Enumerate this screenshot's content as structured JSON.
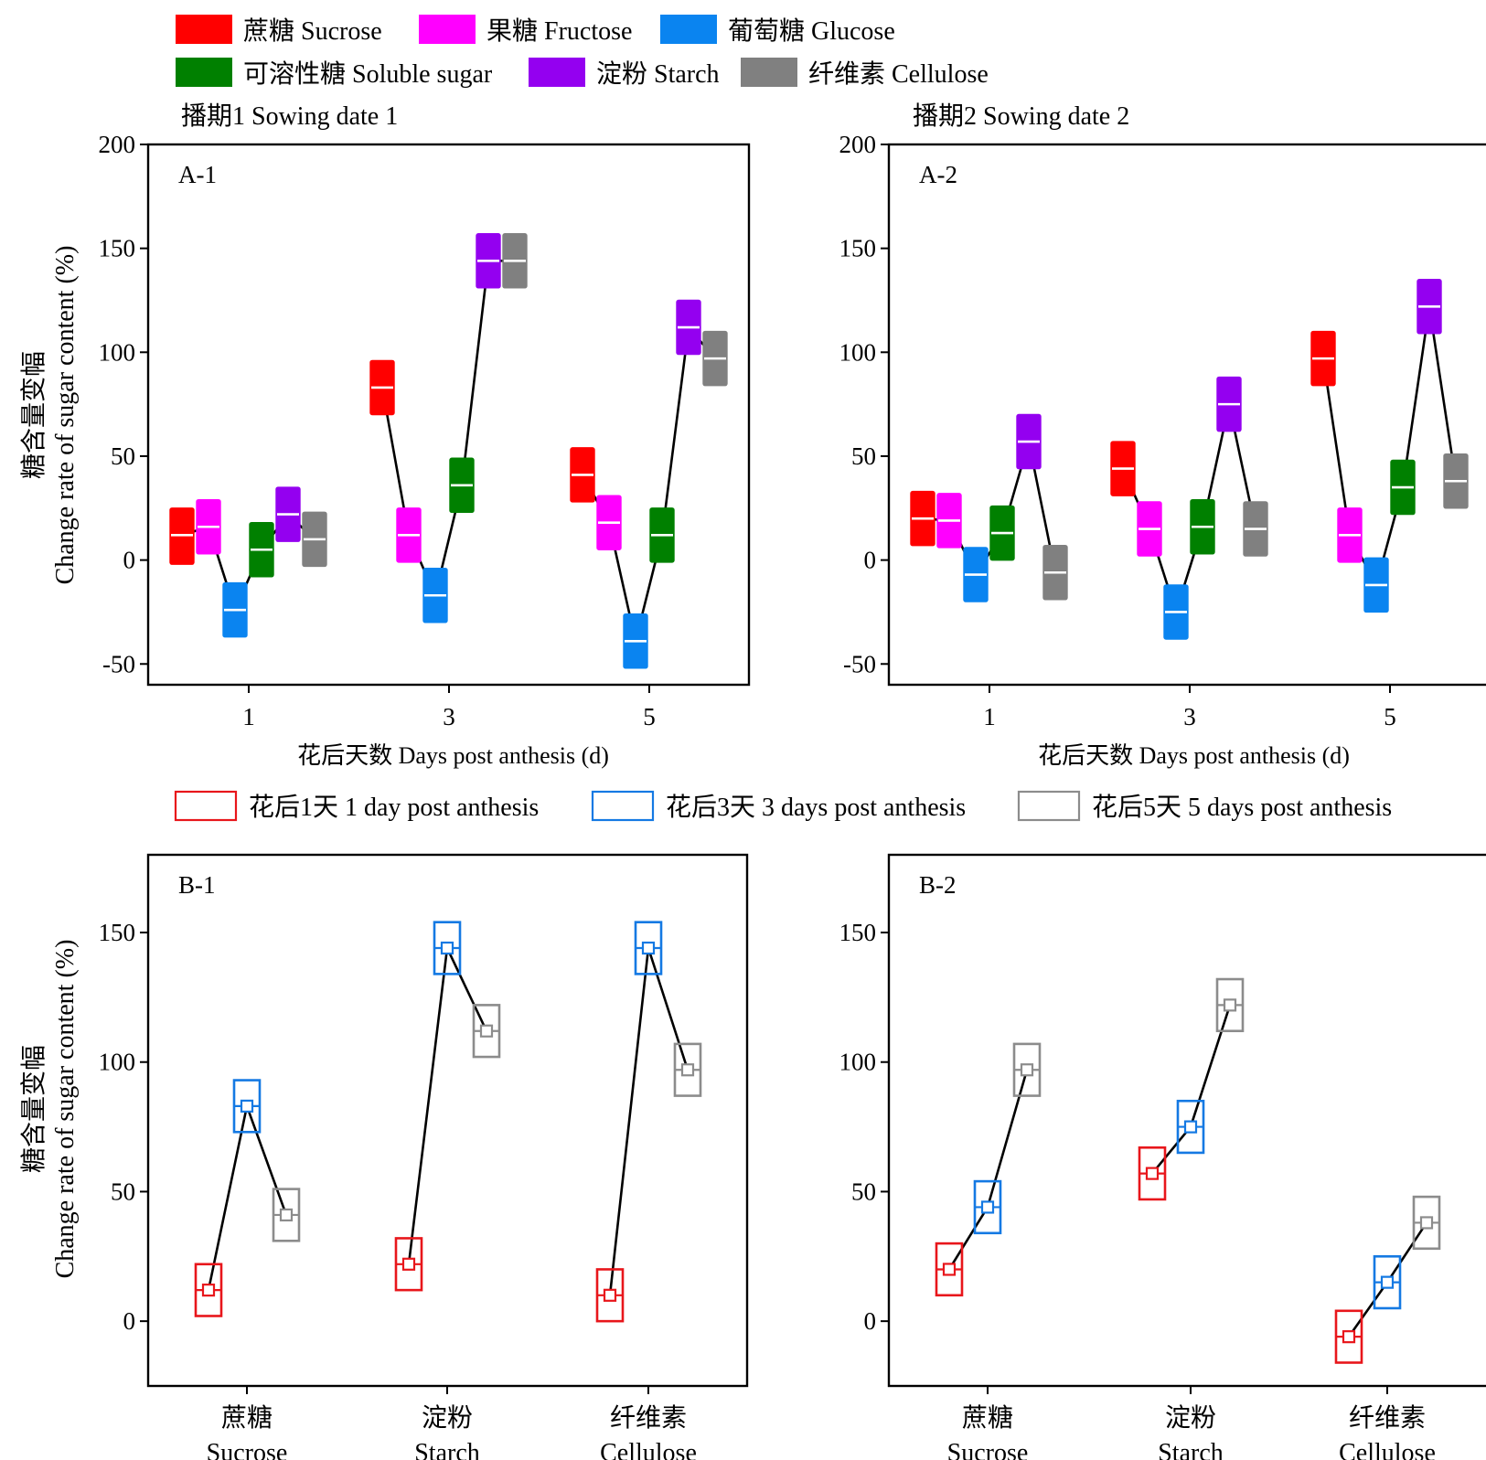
{
  "legend_top": [
    {
      "label": "蔗糖  Sucrose",
      "color": "#ff0000"
    },
    {
      "label": "果糖 Fructose",
      "color": "#ff00ff"
    },
    {
      "label": "葡萄糖 Glucose",
      "color": "#0a84f0"
    },
    {
      "label": "可溶性糖 Soluble sugar",
      "color": "#008000"
    },
    {
      "label": "淀粉 Starch",
      "color": "#9400f0"
    },
    {
      "label": "纤维素 Cellulose",
      "color": "#808080"
    }
  ],
  "legend_bottom": [
    {
      "label": "花后1天 1 day post anthesis",
      "color": "#e8161b"
    },
    {
      "label": "花后3天 3 days post anthesis",
      "color": "#1479e3"
    },
    {
      "label": "花后5天 5 days post anthesis",
      "color": "#8c8c8c"
    }
  ],
  "titles": {
    "sowing1": "播期1 Sowing date 1",
    "sowing2": "播期2 Sowing date 2"
  },
  "ylabel": {
    "zh": "糖含量变幅",
    "en": "Change rate of sugar content (%)"
  },
  "chart_data": [
    {
      "panel": "A-1",
      "type": "box",
      "xlabel": "花后天数 Days post anthesis (d)",
      "ylim": [
        -60,
        200
      ],
      "yticks": [
        -50,
        0,
        50,
        100,
        150,
        200
      ],
      "categories": [
        "1",
        "3",
        "5"
      ],
      "series": [
        {
          "name": "蔗糖  Sucrose",
          "values": [
            12,
            83,
            41
          ],
          "low": [
            -2,
            70,
            28
          ],
          "high": [
            25,
            96,
            54
          ]
        },
        {
          "name": "果糖 Fructose",
          "values": [
            16,
            12,
            18
          ],
          "low": [
            3,
            -1,
            5
          ],
          "high": [
            29,
            25,
            31
          ]
        },
        {
          "name": "葡萄糖 Glucose",
          "values": [
            -24,
            -17,
            -39
          ],
          "low": [
            -37,
            -30,
            -52
          ],
          "high": [
            -11,
            -4,
            -26
          ]
        },
        {
          "name": "可溶性糖 Soluble sugar",
          "values": [
            5,
            36,
            12
          ],
          "low": [
            -8,
            23,
            -1
          ],
          "high": [
            18,
            49,
            25
          ]
        },
        {
          "name": "淀粉 Starch",
          "values": [
            22,
            144,
            112
          ],
          "low": [
            9,
            131,
            99
          ],
          "high": [
            35,
            157,
            125
          ]
        },
        {
          "name": "纤维素 Cellulose",
          "values": [
            10,
            144,
            97
          ],
          "low": [
            -3,
            131,
            84
          ],
          "high": [
            23,
            157,
            110
          ]
        }
      ]
    },
    {
      "panel": "A-2",
      "type": "box",
      "xlabel": "花后天数 Days post anthesis (d)",
      "ylim": [
        -60,
        200
      ],
      "yticks": [
        -50,
        0,
        50,
        100,
        150,
        200
      ],
      "categories": [
        "1",
        "3",
        "5"
      ],
      "series": [
        {
          "name": "蔗糖  Sucrose",
          "values": [
            20,
            44,
            97
          ],
          "low": [
            7,
            31,
            84
          ],
          "high": [
            33,
            57,
            110
          ]
        },
        {
          "name": "果糖 Fructose",
          "values": [
            19,
            15,
            12
          ],
          "low": [
            6,
            2,
            -1
          ],
          "high": [
            32,
            28,
            25
          ]
        },
        {
          "name": "葡萄糖 Glucose",
          "values": [
            -7,
            -25,
            -12
          ],
          "low": [
            -20,
            -38,
            -25
          ],
          "high": [
            6,
            -12,
            1
          ]
        },
        {
          "name": "可溶性糖 Soluble sugar",
          "values": [
            13,
            16,
            35
          ],
          "low": [
            0,
            3,
            22
          ],
          "high": [
            26,
            29,
            48
          ]
        },
        {
          "name": "淀粉 Starch",
          "values": [
            57,
            75,
            122
          ],
          "low": [
            44,
            62,
            109
          ],
          "high": [
            70,
            88,
            135
          ]
        },
        {
          "name": "纤维素 Cellulose",
          "values": [
            -6,
            15,
            38
          ],
          "low": [
            -19,
            2,
            25
          ],
          "high": [
            7,
            28,
            51
          ]
        }
      ]
    },
    {
      "panel": "B-1",
      "type": "box",
      "ylim": [
        -25,
        180
      ],
      "yticks": [
        0,
        50,
        100,
        150
      ],
      "categories": [
        [
          "蔗糖",
          "Sucrose"
        ],
        [
          "淀粉",
          "Starch"
        ],
        [
          "纤维素",
          "Cellulose"
        ]
      ],
      "series": [
        {
          "name": "花后1天 1 day post anthesis",
          "values": [
            12,
            22,
            10
          ],
          "low": [
            2,
            12,
            0
          ],
          "high": [
            22,
            32,
            20
          ]
        },
        {
          "name": "花后3天 3 days post anthesis",
          "values": [
            83,
            144,
            144
          ],
          "low": [
            73,
            134,
            134
          ],
          "high": [
            93,
            154,
            154
          ]
        },
        {
          "name": "花后5天 5 days post anthesis",
          "values": [
            41,
            112,
            97
          ],
          "low": [
            31,
            102,
            87
          ],
          "high": [
            51,
            122,
            107
          ]
        }
      ]
    },
    {
      "panel": "B-2",
      "type": "box",
      "ylim": [
        -25,
        180
      ],
      "yticks": [
        0,
        50,
        100,
        150
      ],
      "categories": [
        [
          "蔗糖",
          "Sucrose"
        ],
        [
          "淀粉",
          "Starch"
        ],
        [
          "纤维素",
          "Cellulose"
        ]
      ],
      "series": [
        {
          "name": "花后1天 1 day post anthesis",
          "values": [
            20,
            57,
            -6
          ],
          "low": [
            10,
            47,
            -16
          ],
          "high": [
            30,
            67,
            4
          ]
        },
        {
          "name": "花后3天 3 days post anthesis",
          "values": [
            44,
            75,
            15
          ],
          "low": [
            34,
            65,
            5
          ],
          "high": [
            54,
            85,
            25
          ]
        },
        {
          "name": "花后5天 5 days post anthesis",
          "values": [
            97,
            122,
            38
          ],
          "low": [
            87,
            112,
            28
          ],
          "high": [
            107,
            132,
            48
          ]
        }
      ]
    }
  ]
}
